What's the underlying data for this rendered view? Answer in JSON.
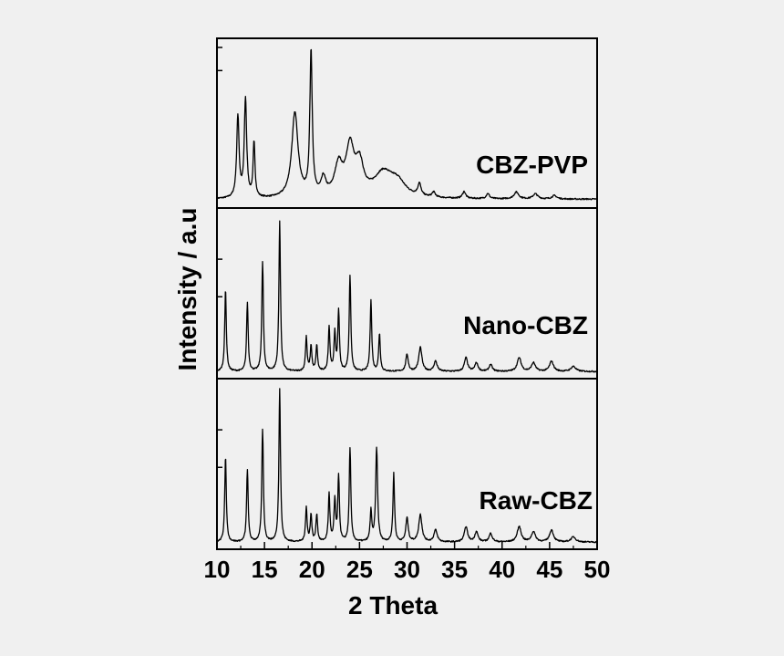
{
  "background_color": "#f0f0f0",
  "chart_data": {
    "type": "line",
    "title": "",
    "xlabel": "2 Theta",
    "ylabel": "Intensity / a.u",
    "xlim": [
      10,
      50
    ],
    "xticks": [
      10,
      15,
      20,
      25,
      30,
      35,
      40,
      45,
      50
    ],
    "xtick_labels": [
      "10",
      "15",
      "20",
      "25",
      "30",
      "35",
      "40",
      "45",
      "50"
    ],
    "stacked_panels": true,
    "grid": false,
    "series": [
      {
        "name": "CBZ-PVP",
        "label": "CBZ-PVP",
        "baseline": 3,
        "peaks": [
          [
            12.2,
            48,
            0.15
          ],
          [
            13.0,
            58,
            0.15
          ],
          [
            13.9,
            32,
            0.12
          ],
          [
            18.2,
            50,
            0.4
          ],
          [
            19.9,
            85,
            0.15
          ],
          [
            21.2,
            10,
            0.3
          ],
          [
            22.8,
            18,
            0.5
          ],
          [
            24.0,
            28,
            0.5
          ],
          [
            25.0,
            18,
            0.5
          ],
          [
            27.5,
            14,
            1.2
          ],
          [
            29.0,
            8,
            1.0
          ],
          [
            31.3,
            7,
            0.2
          ],
          [
            32.8,
            3,
            0.2
          ],
          [
            36.0,
            4,
            0.2
          ],
          [
            38.5,
            3,
            0.2
          ],
          [
            41.5,
            4,
            0.3
          ],
          [
            43.5,
            3,
            0.3
          ],
          [
            45.5,
            2,
            0.3
          ]
        ]
      },
      {
        "name": "Nano-CBZ",
        "label": "Nano-CBZ",
        "baseline": 2,
        "peaks": [
          [
            10.9,
            48,
            0.1
          ],
          [
            13.2,
            40,
            0.1
          ],
          [
            14.8,
            64,
            0.1
          ],
          [
            16.6,
            88,
            0.1
          ],
          [
            19.4,
            20,
            0.1
          ],
          [
            19.9,
            15,
            0.1
          ],
          [
            20.5,
            15,
            0.1
          ],
          [
            21.8,
            26,
            0.1
          ],
          [
            22.4,
            22,
            0.1
          ],
          [
            22.8,
            35,
            0.1
          ],
          [
            24.0,
            56,
            0.1
          ],
          [
            26.2,
            42,
            0.1
          ],
          [
            27.1,
            22,
            0.1
          ],
          [
            30.0,
            10,
            0.15
          ],
          [
            31.4,
            14,
            0.2
          ],
          [
            33.0,
            6,
            0.2
          ],
          [
            36.2,
            8,
            0.2
          ],
          [
            37.3,
            5,
            0.2
          ],
          [
            38.8,
            4,
            0.2
          ],
          [
            41.8,
            8,
            0.25
          ],
          [
            43.3,
            5,
            0.25
          ],
          [
            45.2,
            6,
            0.25
          ],
          [
            47.5,
            3,
            0.3
          ]
        ]
      },
      {
        "name": "Raw-CBZ",
        "label": "Raw-CBZ",
        "baseline": 2,
        "peaks": [
          [
            10.9,
            50,
            0.1
          ],
          [
            13.2,
            42,
            0.1
          ],
          [
            14.8,
            66,
            0.1
          ],
          [
            16.6,
            90,
            0.1
          ],
          [
            19.4,
            20,
            0.1
          ],
          [
            19.9,
            16,
            0.1
          ],
          [
            20.5,
            16,
            0.1
          ],
          [
            21.8,
            28,
            0.1
          ],
          [
            22.4,
            24,
            0.1
          ],
          [
            22.8,
            38,
            0.1
          ],
          [
            24.0,
            55,
            0.1
          ],
          [
            26.2,
            18,
            0.1
          ],
          [
            26.8,
            55,
            0.12
          ],
          [
            28.6,
            40,
            0.1
          ],
          [
            30.0,
            14,
            0.15
          ],
          [
            31.4,
            16,
            0.2
          ],
          [
            33.0,
            7,
            0.2
          ],
          [
            36.2,
            9,
            0.2
          ],
          [
            37.3,
            6,
            0.2
          ],
          [
            38.8,
            5,
            0.2
          ],
          [
            41.8,
            9,
            0.25
          ],
          [
            43.3,
            6,
            0.25
          ],
          [
            45.2,
            7,
            0.25
          ],
          [
            47.5,
            3,
            0.3
          ]
        ]
      }
    ]
  }
}
